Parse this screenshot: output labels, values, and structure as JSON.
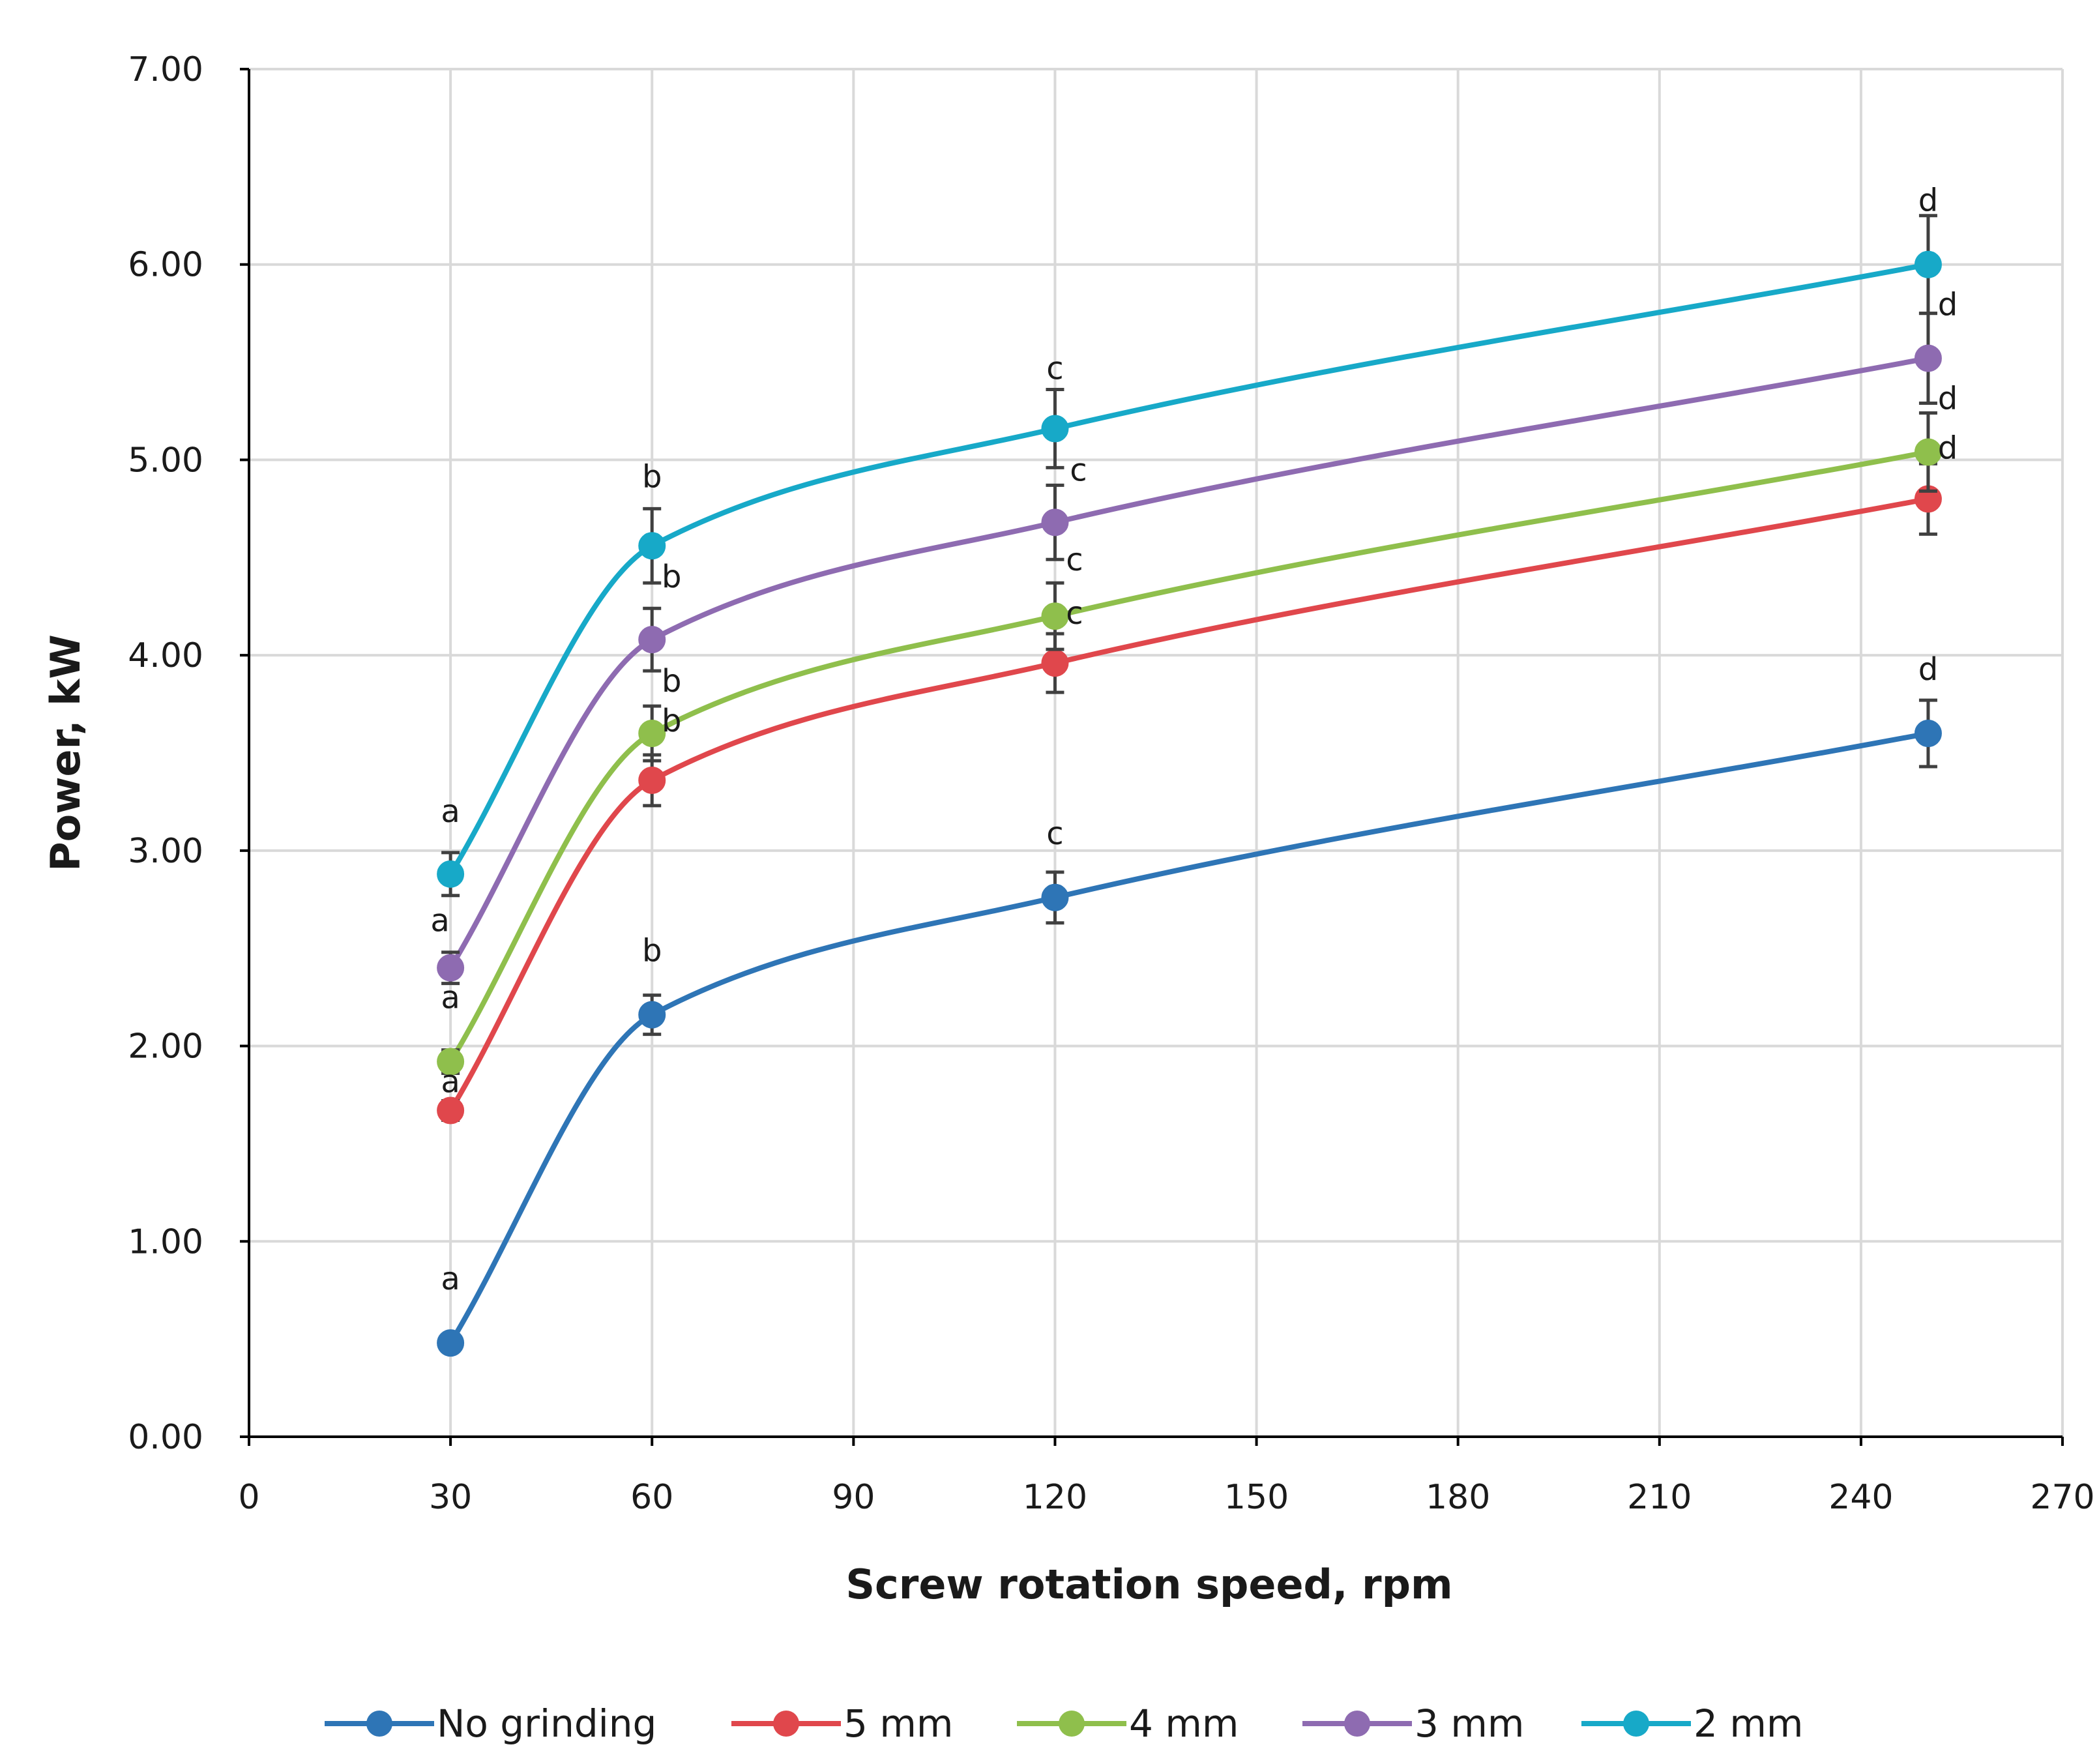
{
  "chart_data": {
    "type": "line",
    "title": "",
    "xlabel": "Screw rotation speed, rpm",
    "ylabel": "Power, kW",
    "xlim": [
      0,
      270
    ],
    "ylim": [
      0,
      7
    ],
    "x_ticks": [
      0,
      30,
      60,
      90,
      120,
      150,
      180,
      210,
      240,
      270
    ],
    "x_tick_labels": [
      "0",
      "30",
      "60",
      "90",
      "120",
      "150",
      "180",
      "210",
      "240",
      "270"
    ],
    "y_ticks": [
      0,
      1,
      2,
      3,
      4,
      5,
      6,
      7
    ],
    "y_tick_labels": [
      "0.00",
      "1.00",
      "2.00",
      "3.00",
      "4.00",
      "5.00",
      "6.00",
      "7.00"
    ],
    "grid": true,
    "legend_position": "bottom",
    "x": [
      30,
      60,
      120,
      250
    ],
    "series": [
      {
        "name": "No grinding",
        "color": "#2e75b6",
        "values": [
          0.48,
          2.16,
          2.76,
          3.6
        ],
        "errors": [
          0,
          0.1,
          0.13,
          0.17
        ],
        "letters": [
          "a",
          "b",
          "c",
          "d"
        ]
      },
      {
        "name": "5 mm",
        "color": "#e0474c",
        "values": [
          1.67,
          3.36,
          3.96,
          4.8
        ],
        "errors": [
          0.05,
          0.13,
          0.15,
          0.18
        ],
        "letters": [
          "a",
          "b",
          "c",
          "d"
        ]
      },
      {
        "name": "4 mm",
        "color": "#8fbf4c",
        "values": [
          1.92,
          3.6,
          4.2,
          5.04
        ],
        "errors": [
          0.06,
          0.14,
          0.17,
          0.2
        ],
        "letters": [
          "a",
          "b",
          "c",
          "d"
        ]
      },
      {
        "name": "3 mm",
        "color": "#8e6bb1",
        "values": [
          2.4,
          4.08,
          4.68,
          5.52
        ],
        "errors": [
          0.08,
          0.16,
          0.19,
          0.23
        ],
        "letters": [
          "a",
          "b",
          "c",
          "d"
        ]
      },
      {
        "name": "2 mm",
        "color": "#17a9c8",
        "values": [
          2.88,
          4.56,
          5.16,
          6.0
        ],
        "errors": [
          0.11,
          0.19,
          0.2,
          0.25
        ],
        "letters": [
          "a",
          "b",
          "c",
          "d"
        ]
      }
    ]
  }
}
